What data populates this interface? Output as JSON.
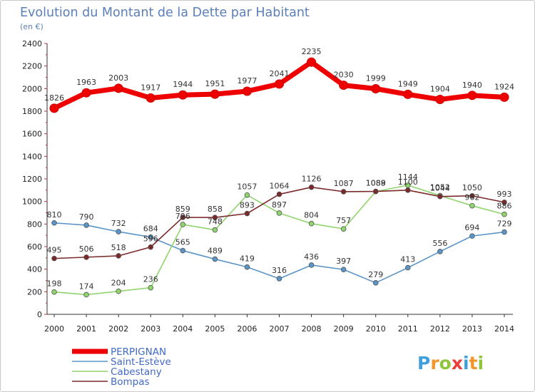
{
  "header": {
    "title": "Evolution du Montant de la Dette par Habitant",
    "subtitle": "(en €)"
  },
  "logo": {
    "text": "Proxiti",
    "letter_colors": [
      "#3fa0dc",
      "#f0962c",
      "#8fc43c",
      "#e8413c",
      "#3fa0dc",
      "#f0962c",
      "#8fc43c"
    ]
  },
  "chart_data": {
    "type": "line",
    "title": "Evolution du Montant de la Dette par Habitant",
    "subtitle": "(en €)",
    "xlabel": "",
    "ylabel": "",
    "x": [
      "2000",
      "2001",
      "2002",
      "2003",
      "2004",
      "2005",
      "2006",
      "2007",
      "2008",
      "2009",
      "2010",
      "2011",
      "2012",
      "2013",
      "2014"
    ],
    "ylim": [
      0,
      2400
    ],
    "yticks": [
      "0",
      "200",
      "400",
      "600",
      "800",
      "1000",
      "1200",
      "1400",
      "1600",
      "1800",
      "2000",
      "2200",
      "2400"
    ],
    "grid": false,
    "legend_position": "bottom-left",
    "series": [
      {
        "name": "PERPIGNAN",
        "color": "#ee0000",
        "values": [
          1826,
          1963,
          2003,
          1917,
          1944,
          1951,
          1977,
          2041,
          2235,
          2030,
          1999,
          1949,
          1904,
          1940,
          1924
        ],
        "labels": [
          "1826",
          "1963",
          "2003",
          "1917",
          "1944",
          "1951",
          "1977",
          "2041",
          "2235",
          "2030",
          "1999",
          "1949",
          "1904",
          "1940",
          "1924"
        ]
      },
      {
        "name": "Saint-Estève",
        "color": "#5b95c8",
        "values": [
          810,
          790,
          732,
          684,
          565,
          489,
          419,
          316,
          436,
          397,
          279,
          413,
          556,
          694,
          729
        ],
        "labels": [
          "810",
          "790",
          "732",
          "684",
          "565",
          "489",
          "419",
          "316",
          "436",
          "397",
          "279",
          "413",
          "556",
          "694",
          "729"
        ]
      },
      {
        "name": "Cabestany",
        "color": "#8fd46c",
        "values": [
          198,
          174,
          204,
          236,
          796,
          748,
          1057,
          897,
          804,
          757,
          1088,
          1144,
          1052,
          962,
          886
        ],
        "labels": [
          "198",
          "174",
          "204",
          "236",
          "796",
          "748",
          "1057",
          "897",
          "804",
          "757",
          "1088",
          "1144",
          "1052",
          "962",
          "886"
        ]
      },
      {
        "name": "Bompas",
        "color": "#7a2a2a",
        "values": [
          495,
          506,
          518,
          596,
          859,
          858,
          893,
          1064,
          1126,
          1087,
          1089,
          1100,
          1044,
          1050,
          993
        ],
        "labels": [
          "495",
          "506",
          "518",
          "596",
          "859",
          "858",
          "893",
          "1064",
          "1126",
          "1087",
          "1089",
          "1100",
          "1044",
          "1050",
          "993"
        ]
      }
    ]
  }
}
